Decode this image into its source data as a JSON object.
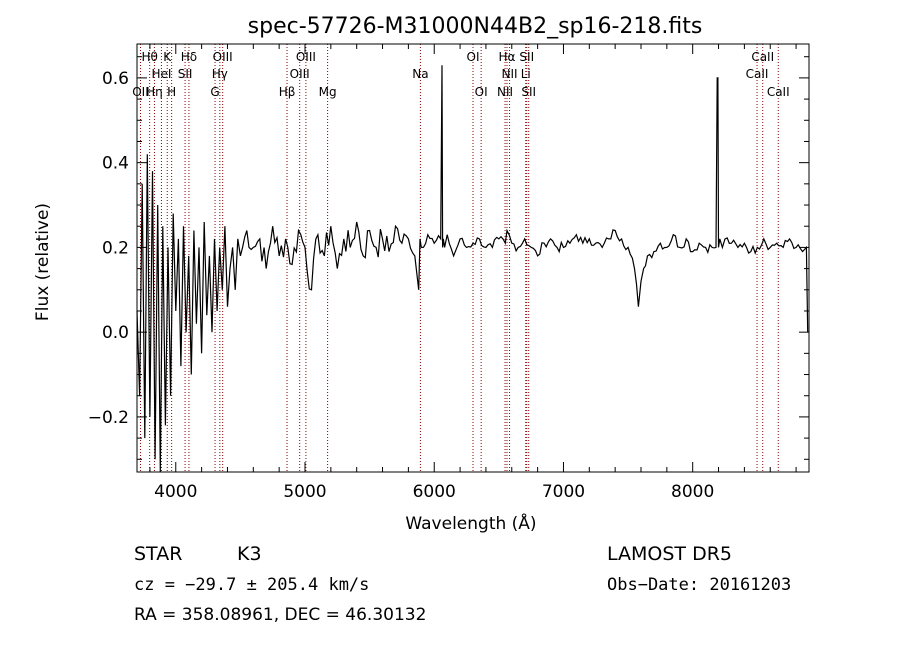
{
  "chart_data": {
    "type": "line",
    "title": "spec-57726-M31000N44B2_sp16-218.fits",
    "xlabel": "Wavelength (Å)",
    "ylabel": "Flux (relative)",
    "xlim": [
      3700,
      8900
    ],
    "ylim": [
      -0.33,
      0.68
    ],
    "xticks": [
      4000,
      5000,
      6000,
      7000,
      8000
    ],
    "xtick_labels": [
      "4000",
      "5000",
      "6000",
      "7000",
      "8000"
    ],
    "yticks": [
      -0.2,
      0.0,
      0.2,
      0.4,
      0.6
    ],
    "ytick_labels": [
      "−0.2",
      "0.0",
      "0.2",
      "0.4",
      "0.6"
    ],
    "grid": false,
    "series": [
      {
        "color": "#000000",
        "x": [
          3700,
          3720,
          3740,
          3760,
          3780,
          3800,
          3820,
          3840,
          3860,
          3880,
          3900,
          3920,
          3940,
          3960,
          3980,
          4000,
          4020,
          4040,
          4060,
          4080,
          4100,
          4120,
          4140,
          4160,
          4180,
          4200,
          4220,
          4240,
          4260,
          4280,
          4300,
          4320,
          4340,
          4360,
          4380,
          4400,
          4420,
          4440,
          4460,
          4480,
          4500,
          4550,
          4600,
          4650,
          4700,
          4750,
          4800,
          4850,
          4900,
          4950,
          5000,
          5050,
          5100,
          5150,
          5200,
          5250,
          5300,
          5350,
          5400,
          5450,
          5500,
          5550,
          5600,
          5650,
          5700,
          5750,
          5800,
          5850,
          5880,
          5890,
          5900,
          5950,
          6000,
          6050,
          6060,
          6065,
          6070,
          6080,
          6100,
          6150,
          6200,
          6250,
          6300,
          6350,
          6400,
          6450,
          6500,
          6550,
          6563,
          6600,
          6650,
          6700,
          6750,
          6800,
          6850,
          6900,
          6950,
          7000,
          7050,
          7100,
          7150,
          7200,
          7250,
          7300,
          7350,
          7400,
          7450,
          7500,
          7550,
          7580,
          7600,
          7620,
          7650,
          7700,
          7750,
          7800,
          7850,
          7900,
          7950,
          8000,
          8050,
          8100,
          8150,
          8180,
          8190,
          8195,
          8200,
          8210,
          8230,
          8250,
          8300,
          8350,
          8400,
          8450,
          8500,
          8550,
          8600,
          8650,
          8700,
          8750,
          8800,
          8850,
          8880,
          8890
        ],
        "y": [
          0.05,
          -0.15,
          0.35,
          -0.25,
          0.42,
          -0.2,
          0.38,
          -0.3,
          0.3,
          -0.33,
          0.25,
          -0.22,
          0.2,
          -0.15,
          0.28,
          0.05,
          0.22,
          -0.08,
          0.25,
          0.0,
          0.18,
          -0.1,
          0.24,
          0.02,
          0.2,
          -0.05,
          0.26,
          0.04,
          0.18,
          0.0,
          0.22,
          0.05,
          0.2,
          0.1,
          0.25,
          0.06,
          0.15,
          0.2,
          0.1,
          0.22,
          0.18,
          0.24,
          0.2,
          0.22,
          0.15,
          0.25,
          0.18,
          0.22,
          0.16,
          0.24,
          0.2,
          0.1,
          0.23,
          0.18,
          0.25,
          0.15,
          0.22,
          0.2,
          0.26,
          0.18,
          0.24,
          0.2,
          0.22,
          0.19,
          0.25,
          0.21,
          0.22,
          0.18,
          0.1,
          0.22,
          0.2,
          0.23,
          0.21,
          0.22,
          0.63,
          0.2,
          0.22,
          0.2,
          0.23,
          0.18,
          0.22,
          0.2,
          0.21,
          0.22,
          0.2,
          0.2,
          0.22,
          0.21,
          0.24,
          0.21,
          0.2,
          0.22,
          0.2,
          0.18,
          0.21,
          0.22,
          0.2,
          0.2,
          0.21,
          0.23,
          0.21,
          0.22,
          0.21,
          0.2,
          0.22,
          0.24,
          0.22,
          0.2,
          0.15,
          0.06,
          0.12,
          0.15,
          0.18,
          0.19,
          0.21,
          0.2,
          0.23,
          0.2,
          0.22,
          0.19,
          0.21,
          0.2,
          0.2,
          0.2,
          0.6,
          0.6,
          0.2,
          0.22,
          0.2,
          0.22,
          0.21,
          0.2,
          0.21,
          0.19,
          0.2,
          0.22,
          0.2,
          0.21,
          0.2,
          0.22,
          0.2,
          0.19,
          0.2,
          0.0
        ]
      }
    ],
    "line_markers": [
      {
        "label": "OII",
        "wavelength": 3727,
        "row": 2
      },
      {
        "label": "Hθ",
        "wavelength": 3798,
        "row": 0
      },
      {
        "label": "Hη",
        "wavelength": 3835,
        "row": 2
      },
      {
        "label": "HeI",
        "wavelength": 3889,
        "row": 1
      },
      {
        "label": "K",
        "wavelength": 3934,
        "row": 0
      },
      {
        "label": "H",
        "wavelength": 3968,
        "row": 2
      },
      {
        "label": "Hδ",
        "wavelength": 4102,
        "row": 0
      },
      {
        "label": "SII",
        "wavelength": 4072,
        "row": 1
      },
      {
        "label": "G",
        "wavelength": 4304,
        "row": 2
      },
      {
        "label": "Hγ",
        "wavelength": 4341,
        "row": 1
      },
      {
        "label": "OIII",
        "wavelength": 4363,
        "row": 0
      },
      {
        "label": "Hβ",
        "wavelength": 4861,
        "row": 2
      },
      {
        "label": "OIII",
        "wavelength": 4959,
        "row": 1
      },
      {
        "label": "OIII",
        "wavelength": 5007,
        "row": 0
      },
      {
        "label": "Mg",
        "wavelength": 5175,
        "row": 2
      },
      {
        "label": "Na",
        "wavelength": 5893,
        "row": 1
      },
      {
        "label": "OI",
        "wavelength": 6300,
        "row": 0
      },
      {
        "label": "OI",
        "wavelength": 6363,
        "row": 2
      },
      {
        "label": "NII",
        "wavelength": 6548,
        "row": 2
      },
      {
        "label": "Hα",
        "wavelength": 6563,
        "row": 0
      },
      {
        "label": "NII",
        "wavelength": 6583,
        "row": 1
      },
      {
        "label": "SII",
        "wavelength": 6716,
        "row": 0
      },
      {
        "label": "Li",
        "wavelength": 6708,
        "row": 1
      },
      {
        "label": "SII",
        "wavelength": 6731,
        "row": 2
      },
      {
        "label": "CaII",
        "wavelength": 8498,
        "row": 1
      },
      {
        "label": "CaII",
        "wavelength": 8542,
        "row": 0
      },
      {
        "label": "CaII",
        "wavelength": 8662,
        "row": 2
      }
    ]
  },
  "footer": {
    "class_label": "STAR",
    "subclass": "K3",
    "survey": "LAMOST DR5",
    "cz": "cz = −29.7 ± 205.4 km/s",
    "obs_date": "Obs−Date: 20161203",
    "radec": "RA = 358.08961, DEC =  46.30132"
  },
  "colors": {
    "line_marker": "#8b0000",
    "spectrum": "#000000",
    "background": "#ffffff"
  }
}
